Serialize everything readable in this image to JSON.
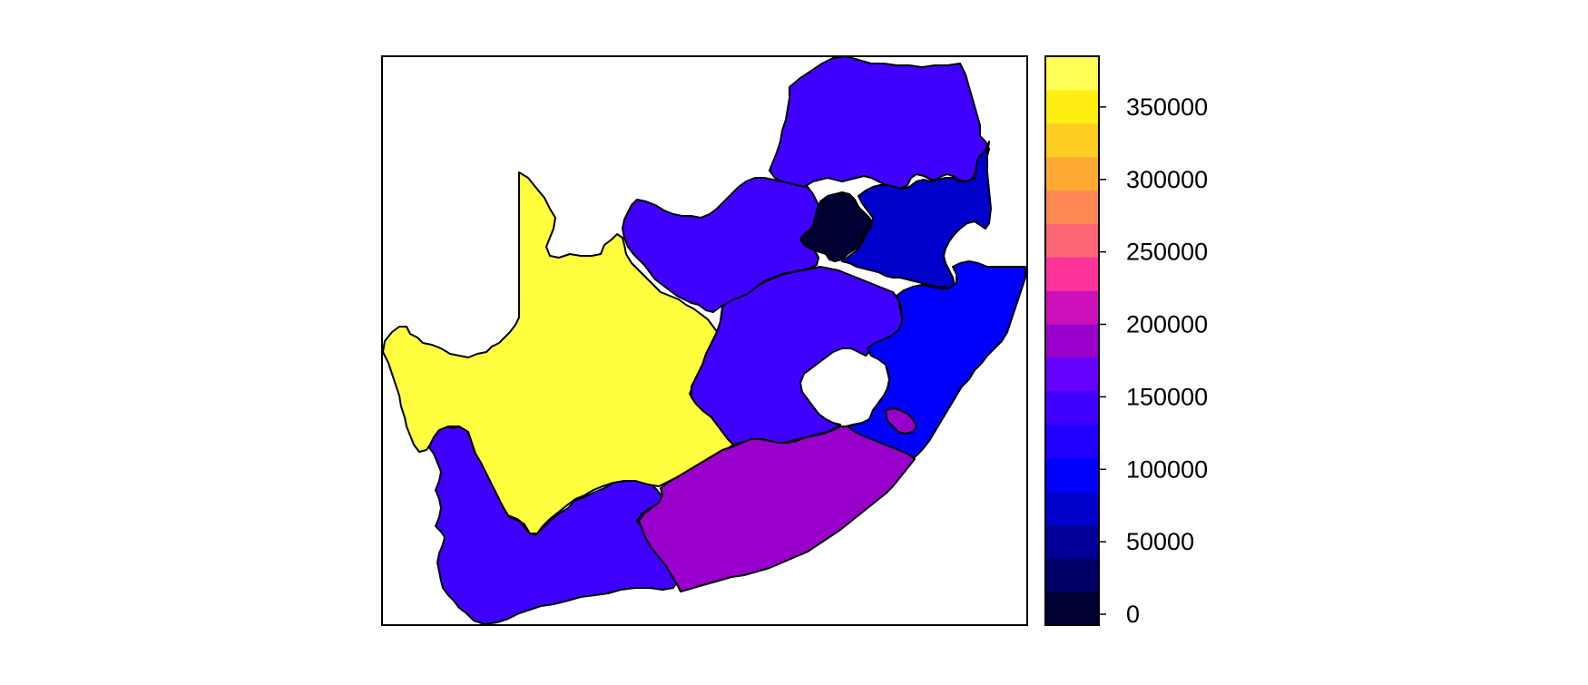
{
  "map": {
    "regions": [
      {
        "name": "Western Cape",
        "value": 120000,
        "color": "#3F00FF"
      },
      {
        "name": "Northern Cape",
        "value": 375000,
        "color": "#FFFF40"
      },
      {
        "name": "North West",
        "value": 120000,
        "color": "#3F00FF"
      },
      {
        "name": "Limpopo",
        "value": 125000,
        "color": "#3F00FF"
      },
      {
        "name": "Gauteng",
        "value": 15000,
        "color": "#000033"
      },
      {
        "name": "Mpumalanga",
        "value": 75000,
        "color": "#0000CC"
      },
      {
        "name": "Free State",
        "value": 125000,
        "color": "#3F00FF"
      },
      {
        "name": "KwaZulu-Natal",
        "value": 95000,
        "color": "#0000FF"
      },
      {
        "name": "Eastern Cape",
        "value": 175000,
        "color": "#9900CC"
      },
      {
        "name": "Eastern Cape exclave",
        "value": 175000,
        "color": "#9900CC"
      }
    ]
  },
  "colorbar": {
    "range": [
      0,
      385000
    ],
    "bin_colors": [
      "#000033",
      "#000066",
      "#000099",
      "#0000CC",
      "#0000FF",
      "#1F00FF",
      "#3F00FF",
      "#6600FF",
      "#9900CC",
      "#CC11BB",
      "#FF3399",
      "#FF6677",
      "#FF8855",
      "#FFAA33",
      "#FFCC22",
      "#FFEE11",
      "#FFFF55"
    ],
    "ticks": [
      {
        "value": 0,
        "label": "0"
      },
      {
        "value": 50000,
        "label": "50000"
      },
      {
        "value": 100000,
        "label": "100000"
      },
      {
        "value": 150000,
        "label": "150000"
      },
      {
        "value": 200000,
        "label": "200000"
      },
      {
        "value": 250000,
        "label": "250000"
      },
      {
        "value": 300000,
        "label": "300000"
      },
      {
        "value": 350000,
        "label": "350000"
      }
    ]
  }
}
